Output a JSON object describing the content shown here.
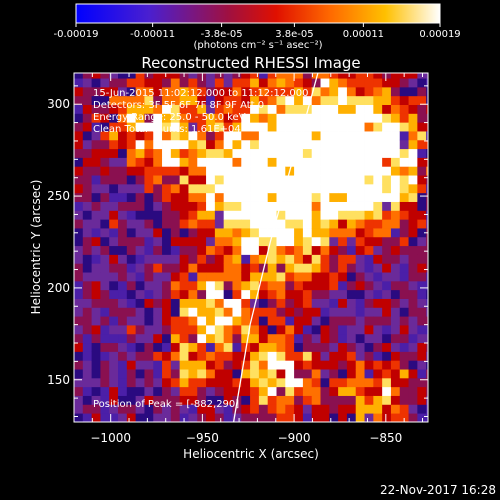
{
  "colorbar": {
    "ticks": [
      -0.00019,
      -0.00011,
      -3.8e-05,
      3.8e-05,
      0.00011,
      0.00019
    ],
    "tick_labels": [
      "-0.00019",
      "-0.00011",
      "-3.8e-05",
      "3.8e-05",
      "0.00011",
      "0.00019"
    ],
    "range": [
      -0.00019,
      0.00019
    ],
    "units_label": "(photons cm⁻² s⁻¹ asec⁻²)",
    "colormap": [
      "#0000ff",
      "#6a1fb0",
      "#c00000",
      "#ff4400",
      "#ffa500",
      "#ffff66",
      "#ffffff"
    ]
  },
  "chart_data": {
    "type": "heatmap",
    "title": "Reconstructed RHESSI Image",
    "xlabel": "Heliocentric X (arcsec)",
    "ylabel": "Heliocentric Y (arcsec)",
    "xlim": [
      -1020,
      -827
    ],
    "ylim": [
      127,
      317
    ],
    "x_ticks": [
      -1000,
      -950,
      -900,
      -850
    ],
    "x_tick_labels": [
      "−1000",
      "−950",
      "−900",
      "−850"
    ],
    "y_ticks": [
      150,
      200,
      250,
      300
    ],
    "y_tick_labels": [
      "150",
      "200",
      "250",
      "300"
    ],
    "limb_line": [
      [
        -933,
        127
      ],
      [
        -924,
        180
      ],
      [
        -913,
        225
      ],
      [
        -902,
        265
      ],
      [
        -893,
        295
      ],
      [
        -887,
        317
      ]
    ],
    "bright_regions": [
      {
        "x": -895,
        "y": 275,
        "r": 38,
        "level": 1.0
      },
      {
        "x": -860,
        "y": 265,
        "r": 30,
        "level": 0.9
      },
      {
        "x": -930,
        "y": 250,
        "r": 28,
        "level": 0.8
      },
      {
        "x": -975,
        "y": 285,
        "r": 26,
        "level": 0.7
      },
      {
        "x": -905,
        "y": 215,
        "r": 22,
        "level": 0.6
      },
      {
        "x": -945,
        "y": 185,
        "r": 22,
        "level": 0.75
      },
      {
        "x": -910,
        "y": 150,
        "r": 20,
        "level": 0.7
      },
      {
        "x": -860,
        "y": 140,
        "r": 18,
        "level": 0.6
      },
      {
        "x": -960,
        "y": 155,
        "r": 14,
        "level": 0.5
      }
    ],
    "annotations": [
      "15-Jun-2015 11:02:12.000 to 11:12:12.000",
      "Detectors: 3F 5F 6F 7F 8F 9F Att 0",
      "Energy Range: 25.0 - 50.0 keV",
      "Clean     Total counts: 1.61E+04"
    ],
    "peak_label": "Position of Peak = [-882,290]",
    "peak": [
      -882,
      290
    ]
  },
  "footer": {
    "date": "22-Nov-2017 16:28"
  }
}
